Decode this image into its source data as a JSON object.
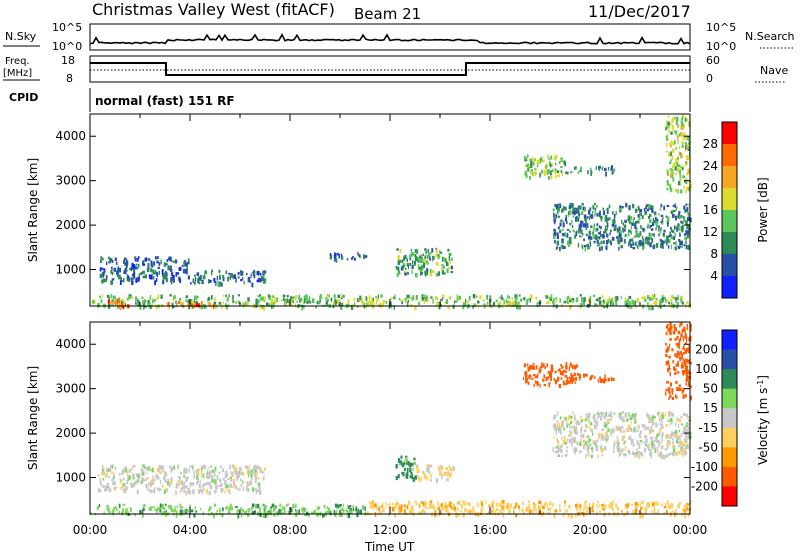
{
  "header": {
    "station": "Christmas Valley West (fitACF)",
    "beam": "Beam 21",
    "date": "11/Dec/2017"
  },
  "panels": {
    "nsky_label": "N.Sky",
    "nsearch_label": "N.Search",
    "freq_label_1": "Freq.",
    "freq_label_2": "[MHz]",
    "nave_label": "Nave",
    "cpid_label": "CPID",
    "mode_text": "normal (fast) 151 RF",
    "noise_ticks": [
      "10^5",
      "10^0"
    ],
    "freq_ticks": [
      "18",
      "8"
    ],
    "nave_ticks": [
      "60",
      "0"
    ]
  },
  "colors": {
    "power_scale": [
      "#1020ff",
      "#2850a8",
      "#2e8b57",
      "#5cc55c",
      "#dcdc30",
      "#f5a623",
      "#ff6a00",
      "#ff0000"
    ],
    "velocity_scale": [
      "#ff0000",
      "#ff5a00",
      "#ff9a00",
      "#ffd060",
      "#c8c8c8",
      "#7ad85a",
      "#2e8b57",
      "#2850a8",
      "#1020ff"
    ],
    "ground_scatter": "#bbbbbb"
  },
  "chart_data": [
    {
      "type": "heatmap",
      "title": "Power",
      "ylabel": "Slant Range [km]",
      "xlabel": "",
      "ylim": [
        180,
        4500
      ],
      "xlim": [
        0,
        24
      ],
      "y_ticks": [
        "1000",
        "2000",
        "3000",
        "4000"
      ],
      "x_ticks": [
        "00:00",
        "04:00",
        "08:00",
        "12:00",
        "16:00",
        "20:00",
        "00:00"
      ],
      "colorbar_label": "Power [dB]",
      "colorbar_ticks": [
        "4",
        "8",
        "12",
        "16",
        "20",
        "24",
        "28"
      ],
      "regions": [
        {
          "t0": 0.0,
          "t1": 24.0,
          "r0": 180,
          "r1": 450,
          "p": 16
        },
        {
          "t0": 0.5,
          "t1": 1.5,
          "r0": 180,
          "r1": 350,
          "p": 28
        },
        {
          "t0": 3.0,
          "t1": 5.0,
          "r0": 180,
          "r1": 300,
          "p": 26
        },
        {
          "t0": 0.3,
          "t1": 4.0,
          "r0": 750,
          "r1": 1300,
          "p": 9
        },
        {
          "t0": 4.0,
          "t1": 7.0,
          "r0": 700,
          "r1": 1000,
          "p": 10
        },
        {
          "t0": 9.5,
          "t1": 11.0,
          "r0": 1250,
          "r1": 1400,
          "p": 8
        },
        {
          "t0": 12.2,
          "t1": 14.5,
          "r0": 900,
          "r1": 1500,
          "p": 14
        },
        {
          "t0": 17.3,
          "t1": 19.0,
          "r0": 3100,
          "r1": 3600,
          "p": 16
        },
        {
          "t0": 19.0,
          "t1": 21.0,
          "r0": 3200,
          "r1": 3350,
          "p": 12
        },
        {
          "t0": 18.5,
          "t1": 24.0,
          "r0": 1500,
          "r1": 2500,
          "p": 11
        },
        {
          "t0": 23.0,
          "t1": 24.0,
          "r0": 2800,
          "r1": 4500,
          "p": 18
        }
      ]
    },
    {
      "type": "heatmap",
      "title": "Velocity",
      "ylabel": "Slant Range [km]",
      "xlabel": "Time UT",
      "ylim": [
        180,
        4500
      ],
      "xlim": [
        0,
        24
      ],
      "y_ticks": [
        "1000",
        "2000",
        "3000",
        "4000"
      ],
      "x_ticks": [
        "00:00",
        "04:00",
        "08:00",
        "12:00",
        "16:00",
        "20:00",
        "00:00"
      ],
      "colorbar_label": "Velocity [m s^-1]",
      "colorbar_ticks": [
        "200",
        "100",
        "50",
        "15",
        "-15",
        "-50",
        "-100",
        "-200"
      ],
      "regions": [
        {
          "t0": 0.0,
          "t1": 11.0,
          "r0": 180,
          "r1": 420,
          "v": 40
        },
        {
          "t0": 11.0,
          "t1": 24.0,
          "r0": 180,
          "r1": 500,
          "v": -40
        },
        {
          "t0": 0.3,
          "t1": 7.0,
          "r0": 700,
          "r1": 1300,
          "v": 0
        },
        {
          "t0": 12.2,
          "t1": 13.0,
          "r0": 1000,
          "r1": 1500,
          "v": 60
        },
        {
          "t0": 13.0,
          "t1": 14.5,
          "r0": 950,
          "r1": 1300,
          "v": -20
        },
        {
          "t0": 17.3,
          "t1": 19.5,
          "r0": 3100,
          "r1": 3600,
          "v": -150
        },
        {
          "t0": 19.5,
          "t1": 21.0,
          "r0": 3200,
          "r1": 3350,
          "v": -160
        },
        {
          "t0": 18.5,
          "t1": 24.0,
          "r0": 1500,
          "r1": 2500,
          "v": 0
        },
        {
          "t0": 23.0,
          "t1": 24.0,
          "r0": 2800,
          "r1": 4500,
          "v": -170
        }
      ]
    }
  ]
}
